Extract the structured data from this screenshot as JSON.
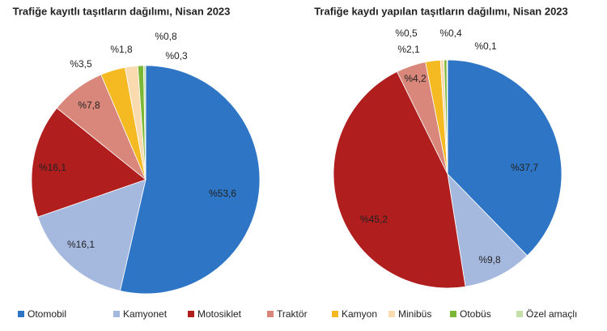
{
  "legend": {
    "categories": [
      "Otomobil",
      "Kamyonet",
      "Motosiklet",
      "Traktör",
      "Kamyon",
      "Minibüs",
      "Otobüs",
      "Özel amaçlı"
    ],
    "colors": [
      "#2e75c6",
      "#a5b9df",
      "#b01e1e",
      "#d9877a",
      "#f5b921",
      "#fadbb0",
      "#7ab734",
      "#c6dfa8"
    ]
  },
  "chart_data": [
    {
      "type": "pie",
      "title": "Trafiğe kayıtlı taşıtların dağılımı, Nisan 2023",
      "values": [
        53.6,
        16.1,
        16.1,
        7.8,
        3.5,
        1.8,
        0.8,
        0.3
      ],
      "value_labels": [
        "%53,6",
        "%16,1",
        "%16,1",
        "%7,8",
        "%3,5",
        "%1,8",
        "%0,8",
        "%0,3"
      ]
    },
    {
      "type": "pie",
      "title": "Trafiğe kaydı yapılan taşıtların dağılımı, Nisan 2023",
      "values": [
        37.7,
        9.8,
        45.2,
        4.2,
        2.1,
        0.5,
        0.4,
        0.1
      ],
      "value_labels": [
        "%37,7",
        "%9,8",
        "%45,2",
        "%4,2",
        "%2,1",
        "%0,5",
        "%0,4",
        "%0,1"
      ]
    }
  ]
}
